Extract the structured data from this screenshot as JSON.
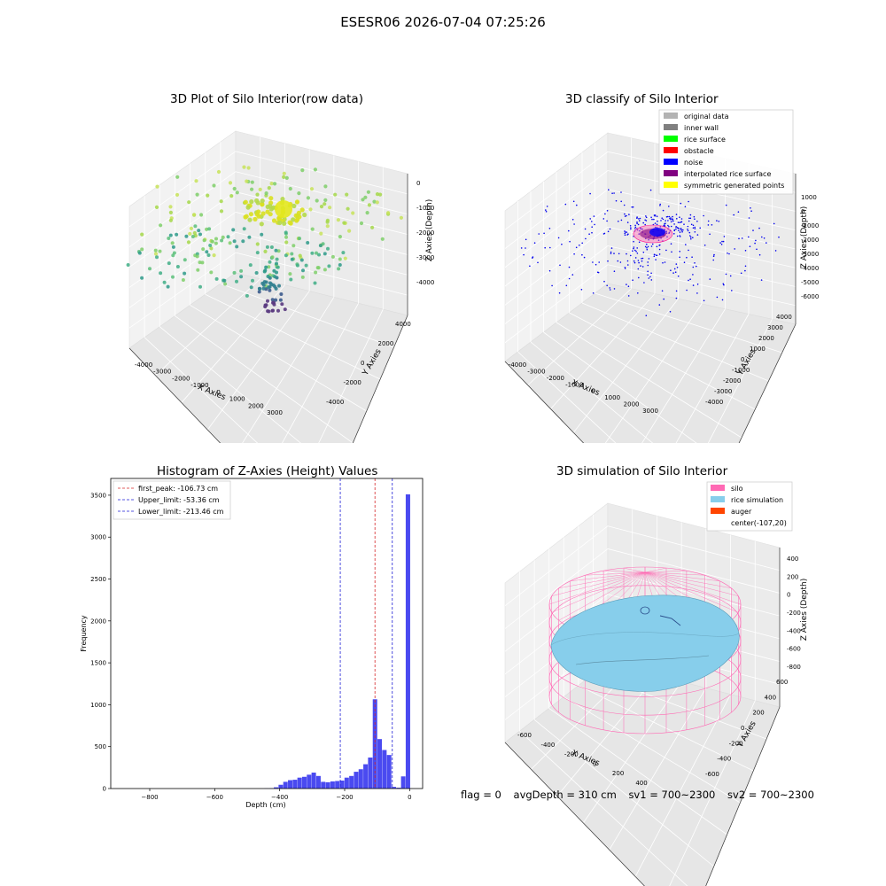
{
  "suptitle": "ESESR06 2026-07-04 07:25:26",
  "colors": {
    "hist_bar": "#4a4af0",
    "peak_line": "#d62728",
    "limit_line": "#1f1fd6",
    "silo": "#ff69b4",
    "rice": "#87ceeb",
    "auger": "#ff4500",
    "noise": "#0000ee"
  },
  "panels": {
    "raw": {
      "title": "3D Plot of Silo Interior(row data)",
      "xlabel": "X Axies",
      "ylabel": "Y Axies",
      "zlabel": "Z Axies (Depth)",
      "xticks": [
        "-4000",
        "-3000",
        "-2000",
        "-1000",
        "0",
        "1000",
        "2000",
        "3000"
      ],
      "yticks": [
        "-4000",
        "-2000",
        "0",
        "2000",
        "4000"
      ],
      "zticks": [
        "0",
        "-1000",
        "-2000",
        "-3000",
        "-4000"
      ]
    },
    "classify": {
      "title": "3D classify of Silo Interior",
      "xlabel": "X Axies",
      "ylabel": "Y Axies",
      "zlabel": "Z Axies (Depth)",
      "xticks": [
        "-4000",
        "-3000",
        "-2000",
        "-1000",
        "0",
        "1000",
        "2000",
        "3000"
      ],
      "yticks": [
        "-4000",
        "-3000",
        "-2000",
        "-1000",
        "0",
        "1000",
        "2000",
        "3000",
        "4000"
      ],
      "zticks": [
        "1000",
        "0",
        "-1000",
        "-2000",
        "-3000",
        "-4000",
        "-5000",
        "-6000"
      ],
      "legend": [
        {
          "label": "original data",
          "color": "#b3b3b3"
        },
        {
          "label": "inner wall",
          "color": "#808080"
        },
        {
          "label": "rice surface",
          "color": "#00ff00"
        },
        {
          "label": "obstacle",
          "color": "#ff0000"
        },
        {
          "label": "noise",
          "color": "#0000ff"
        },
        {
          "label": "interpolated rice surface",
          "color": "#800080"
        },
        {
          "label": "symmetric generated points",
          "color": "#ffff00"
        }
      ]
    },
    "simulation": {
      "title": "3D simulation of Silo Interior",
      "xlabel": "X Axies",
      "ylabel": "Y Axies",
      "zlabel": "Z Axies (Depth)",
      "xticks": [
        "-600",
        "-400",
        "-200",
        "0",
        "200",
        "400"
      ],
      "yticks": [
        "-600",
        "-400",
        "-200",
        "0",
        "200",
        "400",
        "600"
      ],
      "zticks": [
        "400",
        "200",
        "0",
        "-200",
        "-400",
        "-600",
        "-800"
      ],
      "legend": [
        {
          "label": "silo",
          "color": "#ff69b4"
        },
        {
          "label": "rice simulation",
          "color": "#87ceeb"
        },
        {
          "label": "auger",
          "color": "#ff4500"
        },
        {
          "label": "center(-107,20)",
          "color": null
        }
      ]
    },
    "status": {
      "flag": "flag = 0",
      "avg": "avgDepth = 310 cm",
      "sv1": "sv1 = 700~2300",
      "sv2": "sv2 = 700~2300"
    }
  },
  "chart_data": [
    {
      "type": "bar",
      "title": "Histogram of Z-Axies (Height) Values",
      "xlabel": "Depth (cm)",
      "ylabel": "Frequency",
      "xlim": [
        -920,
        40
      ],
      "ylim": [
        0,
        3700
      ],
      "xticks": [
        -800,
        -600,
        -400,
        -200,
        0
      ],
      "yticks": [
        0,
        500,
        1000,
        1500,
        2000,
        2500,
        3000,
        3500
      ],
      "bin_width": 14.5,
      "bins": [
        {
          "x0": -447,
          "v": 2
        },
        {
          "x0": -432.5,
          "v": 3
        },
        {
          "x0": -418,
          "v": 15
        },
        {
          "x0": -403.5,
          "v": 45
        },
        {
          "x0": -389,
          "v": 80
        },
        {
          "x0": -374.5,
          "v": 100
        },
        {
          "x0": -360,
          "v": 105
        },
        {
          "x0": -345.5,
          "v": 130
        },
        {
          "x0": -331,
          "v": 140
        },
        {
          "x0": -316.5,
          "v": 165
        },
        {
          "x0": -302,
          "v": 190
        },
        {
          "x0": -287.5,
          "v": 150
        },
        {
          "x0": -273,
          "v": 80
        },
        {
          "x0": -258.5,
          "v": 75
        },
        {
          "x0": -244,
          "v": 85
        },
        {
          "x0": -229.5,
          "v": 90
        },
        {
          "x0": -215,
          "v": 95
        },
        {
          "x0": -200.5,
          "v": 130
        },
        {
          "x0": -186,
          "v": 150
        },
        {
          "x0": -171.5,
          "v": 200
        },
        {
          "x0": -157,
          "v": 230
        },
        {
          "x0": -142.5,
          "v": 290
        },
        {
          "x0": -128,
          "v": 370
        },
        {
          "x0": -113.5,
          "v": 1065
        },
        {
          "x0": -99,
          "v": 590
        },
        {
          "x0": -84.5,
          "v": 460
        },
        {
          "x0": -70,
          "v": 400
        },
        {
          "x0": -55.5,
          "v": 20
        },
        {
          "x0": -41,
          "v": 10
        },
        {
          "x0": -26.5,
          "v": 145
        },
        {
          "x0": -12,
          "v": 3510
        }
      ],
      "lines": [
        {
          "label": "first_peak: -106.73 cm",
          "x": -106.73,
          "color": "#d62728"
        },
        {
          "label": "Upper_limit: -53.36 cm",
          "x": -53.36,
          "color": "#1f1fd6"
        },
        {
          "label": "Lower_limit: -213.46 cm",
          "x": -213.46,
          "color": "#1f1fd6"
        }
      ]
    }
  ]
}
